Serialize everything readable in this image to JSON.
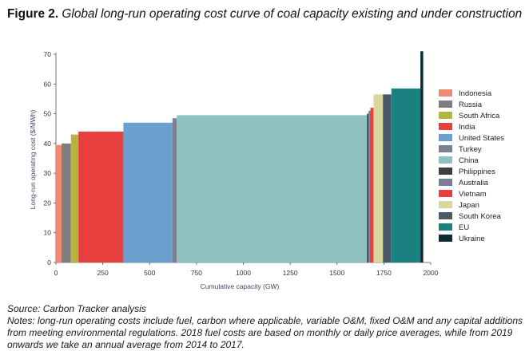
{
  "figure": {
    "label": "Figure 2.",
    "title": "Global long-run operating cost curve of coal capacity existing and under construction"
  },
  "source": "Source: Carbon Tracker analysis",
  "notes": "Notes: long-run operating costs include fuel, carbon where applicable, variable O&M, fixed O&M and any capital additions from meeting environmental regulations. 2018 fuel costs are based on monthly or daily price averages, while from 2019 onwards we take an annual average from 2014 to 2017.",
  "chart_data": {
    "type": "bar",
    "subtype": "variable-width cost curve",
    "xlabel": "Cumulative capacity (GW)",
    "ylabel": "Long-run operating cost ($/MWh)",
    "xlim": [
      0,
      2000
    ],
    "ylim": [
      0,
      70
    ],
    "xticks": [
      0,
      250,
      500,
      750,
      1000,
      1250,
      1500,
      1750,
      2000
    ],
    "yticks": [
      0,
      10,
      20,
      30,
      40,
      50,
      60,
      70
    ],
    "legend_position": "right",
    "series": [
      {
        "name": "Indonesia",
        "color": "#EE8A74",
        "bars": [
          {
            "x0": 0,
            "x1": 30,
            "value": 39.5
          }
        ]
      },
      {
        "name": "Russia",
        "color": "#7E7E7E",
        "bars": [
          {
            "x0": 30,
            "x1": 80,
            "value": 40
          }
        ]
      },
      {
        "name": "South Africa",
        "color": "#B3B53C",
        "bars": [
          {
            "x0": 80,
            "x1": 120,
            "value": 43
          }
        ]
      },
      {
        "name": "India",
        "color": "#E8403F",
        "bars": [
          {
            "x0": 120,
            "x1": 360,
            "value": 44
          }
        ]
      },
      {
        "name": "United States",
        "color": "#6B9FCE",
        "bars": [
          {
            "x0": 360,
            "x1": 622,
            "value": 47
          }
        ]
      },
      {
        "name": "Turkey",
        "color": "#7F8192",
        "bars": [
          {
            "x0": 622,
            "x1": 645,
            "value": 48.5
          }
        ]
      },
      {
        "name": "China",
        "color": "#8FC1C0",
        "bars": [
          {
            "x0": 645,
            "x1": 1660,
            "value": 49.5
          }
        ]
      },
      {
        "name": "Philippines",
        "color": "#3E3E3E",
        "bars": [
          {
            "x0": 1660,
            "x1": 1668,
            "value": 50
          }
        ]
      },
      {
        "name": "Australia",
        "color": "#7C7C96",
        "bars": [
          {
            "x0": 1668,
            "x1": 1678,
            "value": 51
          }
        ]
      },
      {
        "name": "Vietnam",
        "color": "#E8403F",
        "bars": [
          {
            "x0": 1678,
            "x1": 1695,
            "value": 52
          }
        ]
      },
      {
        "name": "Japan",
        "color": "#D7D79E",
        "bars": [
          {
            "x0": 1695,
            "x1": 1745,
            "value": 56.5
          }
        ]
      },
      {
        "name": "South Korea",
        "color": "#4A5966",
        "bars": [
          {
            "x0": 1745,
            "x1": 1790,
            "value": 56.5
          }
        ]
      },
      {
        "name": "EU",
        "color": "#1B8080",
        "bars": [
          {
            "x0": 1790,
            "x1": 1945,
            "value": 58.5
          }
        ]
      },
      {
        "name": "Ukraine",
        "color": "#0F2A35",
        "bars": [
          {
            "x0": 1945,
            "x1": 1960,
            "value": 71
          }
        ]
      }
    ]
  }
}
